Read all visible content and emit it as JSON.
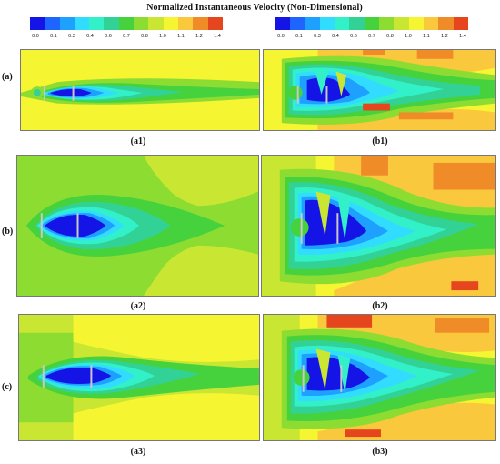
{
  "figure": {
    "title": "Normalized Instantaneous Velocity (Non-Dimensional)",
    "colorbar": {
      "colors": [
        "#1414e6",
        "#1e64ff",
        "#1ea0ff",
        "#32dcff",
        "#32f0c8",
        "#32d296",
        "#46d23c",
        "#8cdc32",
        "#c8e632",
        "#f5f532",
        "#fac83c",
        "#f08c28",
        "#e6461e"
      ],
      "ticks": [
        "0.0",
        "0.1",
        "0.3",
        "0.4",
        "0.6",
        "0.7",
        "0.8",
        "1.0",
        "1.1",
        "1.2",
        "1.4"
      ]
    },
    "rows": [
      {
        "label": "(a)",
        "left_caption": "(a1)",
        "right_caption": "(b1)"
      },
      {
        "label": "(b)",
        "left_caption": "(a2)",
        "right_caption": "(b2)"
      },
      {
        "label": "(c)",
        "left_caption": "(a3)",
        "right_caption": "(b3)"
      }
    ]
  }
}
